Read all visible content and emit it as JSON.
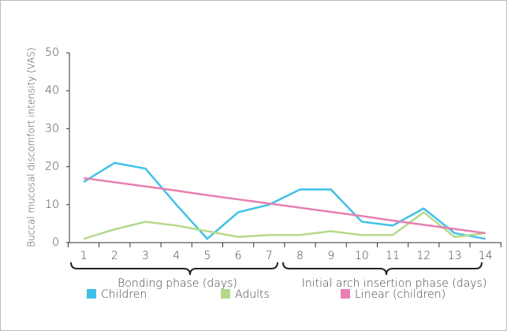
{
  "chart_data": {
    "type": "line",
    "y_label": "Buccal mucosal discomfort intensity (VAS)",
    "categories": [
      "1",
      "2",
      "3",
      "4",
      "5",
      "6",
      "7",
      "8",
      "9",
      "10",
      "11",
      "12",
      "13",
      "14"
    ],
    "series": [
      {
        "name": "Children",
        "color": "#3fc1e8",
        "values": [
          16,
          21,
          19.5,
          10,
          1,
          8,
          10,
          14,
          14,
          5.5,
          4.5,
          9,
          2.5,
          1
        ]
      },
      {
        "name": "Adults",
        "color": "#b5d98b",
        "values": [
          1,
          3.5,
          5.5,
          4.5,
          3,
          1.5,
          2,
          2,
          3,
          2,
          2,
          8,
          1.5,
          2.5
        ]
      },
      {
        "name": "Linear (children)",
        "color": "#e87fb0",
        "values": [
          17,
          15.9,
          14.8,
          13.7,
          12.5,
          11.4,
          10.3,
          9.2,
          8.1,
          7,
          5.8,
          4.7,
          3.6,
          2.5
        ]
      }
    ],
    "ylim": [
      0,
      50
    ],
    "yticks": [
      0,
      10,
      20,
      30,
      40,
      50
    ],
    "annotations": [
      "Bonding phase (days)",
      "Initial arch insertion phase (days)"
    ]
  }
}
